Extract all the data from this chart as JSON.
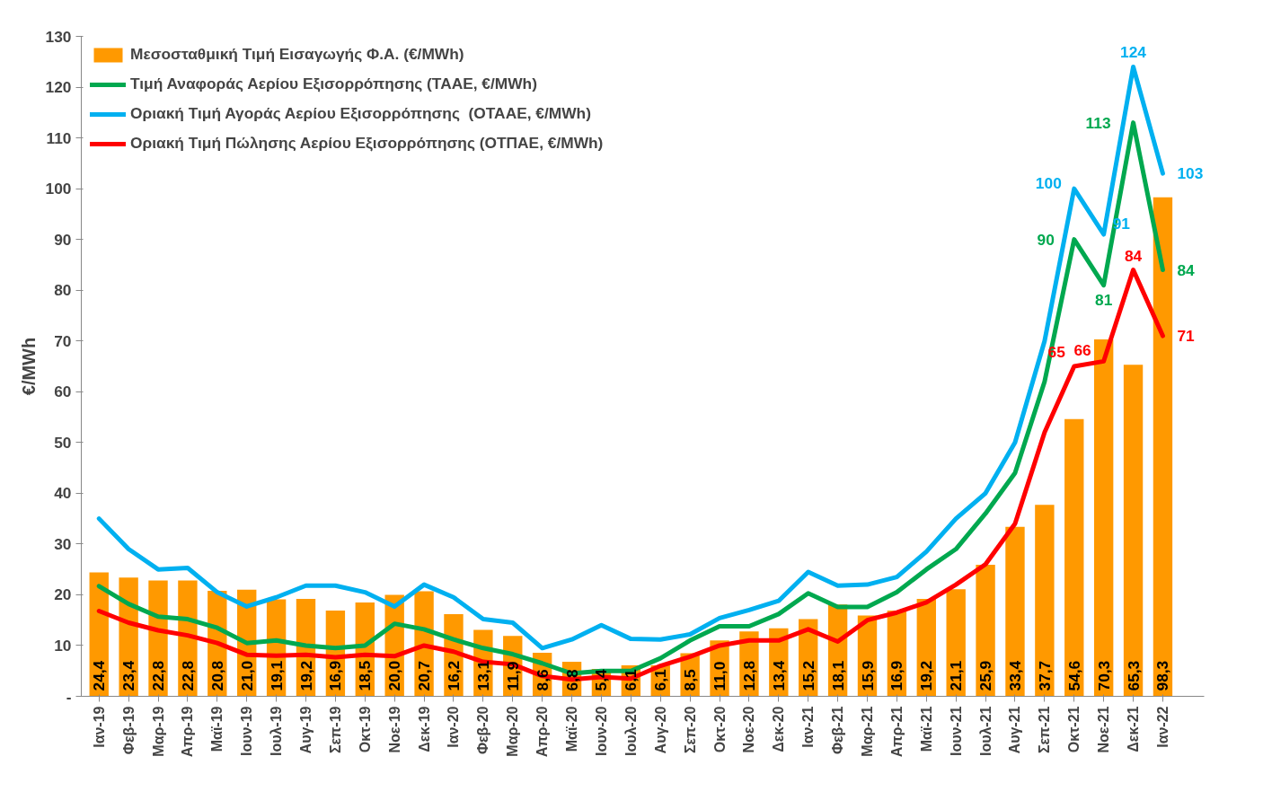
{
  "chart_data": {
    "type": "bar",
    "ylabel": "€/MWh",
    "categories": [
      "Ιαν-19",
      "Φεβ-19",
      "Μαρ-19",
      "Απρ-19",
      "Μαϊ-19",
      "Ιουν-19",
      "Ιουλ-19",
      "Αυγ-19",
      "Σεπ-19",
      "Οκτ-19",
      "Νοε-19",
      "Δεκ-19",
      "Ιαν-20",
      "Φεβ-20",
      "Μαρ-20",
      "Απρ-20",
      "Μαϊ-20",
      "Ιουν-20",
      "Ιουλ-20",
      "Αυγ-20",
      "Σεπ-20",
      "Οκτ-20",
      "Νοε-20",
      "Δεκ-20",
      "Ιαν-21",
      "Φεβ-21",
      "Μαρ-21",
      "Απρ-21",
      "Μαϊ-21",
      "Ιουν-21",
      "Ιουλ-21",
      "Αυγ-21",
      "Σεπ-21",
      "Οκτ-21",
      "Νοε-21",
      "Δεκ-21",
      "Ιαν-22"
    ],
    "series": [
      {
        "name": "Μεσοσταθμική Τιμή Εισαγωγής Φ.Α. (€/MWh)",
        "color": "#ff9900",
        "values": [
          24.4,
          23.4,
          22.8,
          22.8,
          20.8,
          21.0,
          19.1,
          19.2,
          16.9,
          18.5,
          20.0,
          20.7,
          16.2,
          13.1,
          11.9,
          8.6,
          6.8,
          5.4,
          6.1,
          6.1,
          8.5,
          11.0,
          12.8,
          13.4,
          15.2,
          18.1,
          15.9,
          16.9,
          19.2,
          21.1,
          25.9,
          33.4,
          37.7,
          54.6,
          70.3,
          65.3,
          98.3
        ],
        "value_labels": [
          "24,4",
          "23,4",
          "22,8",
          "22,8",
          "20,8",
          "21,0",
          "19,1",
          "19,2",
          "16,9",
          "18,5",
          "20,0",
          "20,7",
          "16,2",
          "13,1",
          "11,9",
          "8,6",
          "6,8",
          "5,4",
          "6,1",
          "6,1",
          "8,5",
          "11,0",
          "12,8",
          "13,4",
          "15,2",
          "18,1",
          "15,9",
          "16,9",
          "19,2",
          "21,1",
          "25,9",
          "33,4",
          "37,7",
          "54,6",
          "70,3",
          "65,3",
          "98,3"
        ]
      },
      {
        "name": "Τιμή Αναφοράς Αερίου Εξισορρόπησης (ΤΑΑΕ, €/MWh)",
        "type": "line",
        "color": "#00a84f",
        "values": [
          21.7,
          18.2,
          15.7,
          15.2,
          13.5,
          10.5,
          11,
          10,
          9.5,
          10,
          14.3,
          13.2,
          11.2,
          9.5,
          8.3,
          6.5,
          4.5,
          5,
          5,
          7.5,
          11,
          13.8,
          13.8,
          16.2,
          20.3,
          17.6,
          17.6,
          20.5,
          25,
          29,
          36,
          44,
          62,
          90,
          81,
          113,
          84
        ],
        "value_labels": [
          null,
          null,
          null,
          null,
          null,
          null,
          null,
          null,
          null,
          null,
          null,
          null,
          null,
          null,
          null,
          null,
          null,
          null,
          null,
          null,
          null,
          null,
          null,
          null,
          null,
          null,
          null,
          null,
          null,
          null,
          null,
          null,
          null,
          "90",
          "81",
          "113",
          "84"
        ]
      },
      {
        "name": "Οριακή Τιμή Αγοράς Αερίου Εξισορρόπησης  (ΟΤΑΑΕ, €/MWh)",
        "type": "line",
        "color": "#00b0f0",
        "values": [
          35,
          29,
          25,
          25.3,
          20.5,
          17.7,
          19.5,
          21.8,
          21.8,
          20.5,
          17.7,
          22,
          19.5,
          15.2,
          14.5,
          9.5,
          11.2,
          14,
          11.3,
          11.2,
          12.2,
          15.4,
          17,
          18.8,
          24.5,
          21.8,
          22,
          23.5,
          28.5,
          35,
          40,
          50,
          70,
          100,
          91,
          124,
          103
        ],
        "value_labels": [
          null,
          null,
          null,
          null,
          null,
          null,
          null,
          null,
          null,
          null,
          null,
          null,
          null,
          null,
          null,
          null,
          null,
          null,
          null,
          null,
          null,
          null,
          null,
          null,
          null,
          null,
          null,
          null,
          null,
          null,
          null,
          null,
          null,
          "100",
          "91",
          "124",
          "103"
        ]
      },
      {
        "name": "Οριακή Τιμή Πώλησης Αερίου Εξισορρόπησης (ΟΤΠΑΕ, €/MWh)",
        "type": "line",
        "color": "#ff0000",
        "values": [
          16.8,
          14.5,
          13,
          12,
          10.5,
          8.2,
          8,
          8.2,
          7.7,
          8.2,
          7.9,
          10,
          8.8,
          6.8,
          6.3,
          4,
          3.3,
          3.8,
          3.5,
          6,
          7.8,
          10,
          11,
          11,
          13.2,
          10.8,
          15,
          16.5,
          18.5,
          22,
          26,
          34,
          52,
          65,
          66,
          84,
          71
        ],
        "value_labels": [
          null,
          null,
          null,
          null,
          null,
          null,
          null,
          null,
          null,
          null,
          null,
          null,
          null,
          null,
          null,
          null,
          null,
          null,
          null,
          null,
          null,
          null,
          null,
          null,
          null,
          null,
          null,
          null,
          null,
          null,
          null,
          null,
          null,
          "65",
          "66",
          "84",
          "71"
        ]
      }
    ],
    "ylim": [
      0,
      130
    ],
    "yticks": [
      {
        "value": 0,
        "label": "-"
      },
      10,
      20,
      30,
      40,
      50,
      60,
      70,
      80,
      90,
      100,
      110,
      120,
      130
    ],
    "grid": false,
    "legend": "top left"
  }
}
